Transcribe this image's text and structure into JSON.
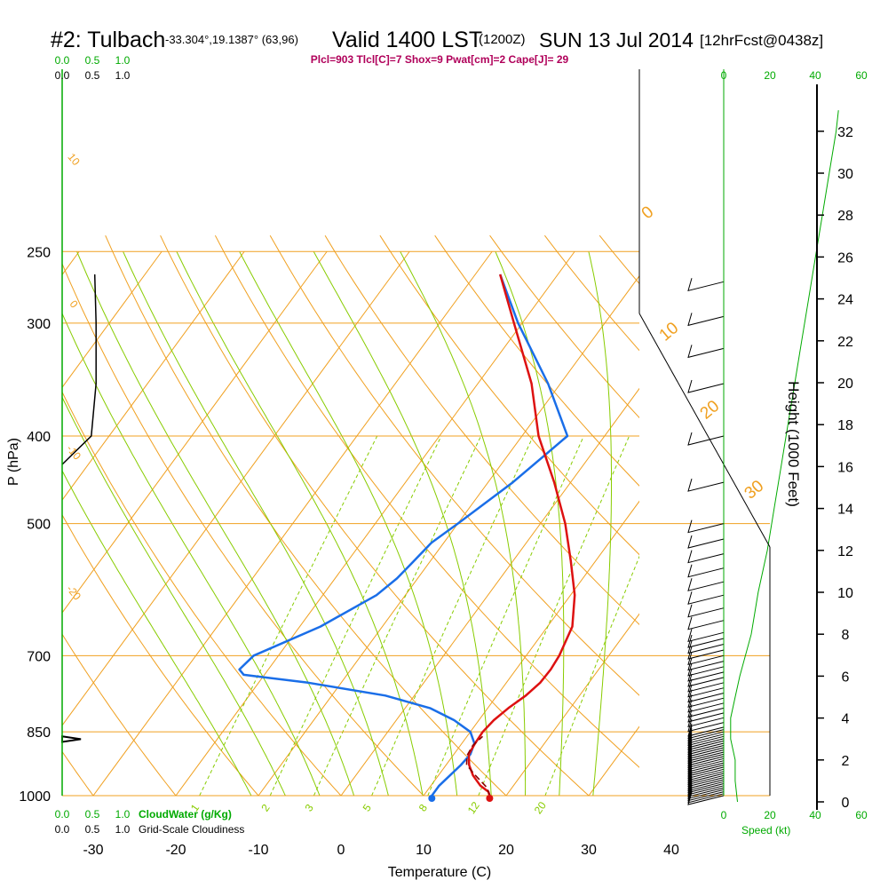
{
  "header": {
    "station": "#2: Tulbach",
    "coords": "-33.304°,19.1387° (63,96)",
    "valid": "Valid 1400 LST",
    "zulu": "(1200Z)",
    "date": "SUN 13 Jul 2014",
    "fcst": "[12hrFcst@0438z]",
    "indices": "Plcl=903 Tlcl[C]=7 Shox=9 Pwat[cm]=2 Cape[J]= 29"
  },
  "colors": {
    "temperature": "#dd1111",
    "dewpoint": "#1a6ee8",
    "parcel": "#8b0000",
    "isotherm_isobar": "#f0a020",
    "dry_adiabat": "#f0a020",
    "moist_adiabat": "#88cc00",
    "mixing_ratio": "#88cc00",
    "cloud": "#000000",
    "speed": "#00aa00"
  },
  "chart_data": {
    "type": "skew-t",
    "xlabel": "Temperature (C)",
    "ylabel": "P (hPa)",
    "y2label": "Height (1000 Feet)",
    "xlim": [
      -35,
      45
    ],
    "pressure_levels": [
      250,
      300,
      400,
      500,
      700,
      850,
      1000
    ],
    "pressure_tick_labels": [
      "250",
      "300",
      "400",
      "500",
      "700",
      "850",
      "1000"
    ],
    "temperature_ticks": [
      -30,
      -20,
      -10,
      0,
      10,
      20,
      30,
      40
    ],
    "temperature_tick_labels": [
      "-30",
      "-20",
      "-10",
      "0",
      "10",
      "20",
      "30",
      "40"
    ],
    "height_ticks_kft": [
      0,
      2,
      4,
      6,
      8,
      10,
      12,
      14,
      16,
      18,
      20,
      22,
      24,
      26,
      28,
      30,
      32
    ],
    "height_tick_labels": [
      "0",
      "2",
      "4",
      "6",
      "8",
      "10",
      "12",
      "14",
      "16",
      "18",
      "20",
      "22",
      "24",
      "26",
      "28",
      "30",
      "32"
    ],
    "isotherm_labels": [
      "0",
      "10",
      "20",
      "30"
    ],
    "dry_adiabat_labels": [
      "10",
      "0",
      "-10",
      "-20"
    ],
    "mixing_ratio_labels": [
      "1",
      "2",
      "3",
      "5",
      "8",
      "12",
      "20"
    ],
    "temperature_profile": {
      "name": "Temperature",
      "p": [
        1000,
        990,
        975,
        950,
        925,
        900,
        875,
        850,
        825,
        800,
        775,
        750,
        725,
        700,
        650,
        600,
        550,
        500,
        450,
        400,
        350,
        300,
        265
      ],
      "t": [
        18,
        17.5,
        16,
        14.2,
        12.8,
        11.8,
        11.6,
        11.5,
        11.8,
        12.5,
        13.5,
        14.1,
        14.2,
        14,
        13,
        10.5,
        7,
        3,
        -2,
        -8,
        -13.5,
        -21,
        -27
      ]
    },
    "dewpoint_profile": {
      "name": "Dewpoint",
      "p": [
        1000,
        975,
        950,
        925,
        900,
        875,
        850,
        825,
        800,
        775,
        750,
        735,
        725,
        700,
        650,
        600,
        575,
        550,
        525,
        500,
        450,
        400,
        350,
        300,
        265
      ],
      "td": [
        11,
        11,
        11.4,
        11.8,
        12,
        11.5,
        10,
        7,
        3,
        -3.5,
        -14,
        -22.5,
        -23.5,
        -23,
        -17.5,
        -13.5,
        -12.5,
        -12,
        -11.5,
        -10,
        -7,
        -4.5,
        -11.5,
        -20.5,
        -27
      ]
    },
    "parcel_path": {
      "name": "Parcel",
      "p": [
        1000,
        980,
        950,
        925,
        903,
        880,
        860
      ],
      "t": [
        18,
        17,
        14.5,
        12.5,
        11.7,
        11.5,
        11.9
      ]
    },
    "surface_points": {
      "temperature": 18,
      "dewpoint": 11
    },
    "cloud_axis": {
      "top_ticks": [
        "0.0",
        "0.5",
        "1.0"
      ],
      "top_ticks_cloudwater": [
        "0.0",
        "0.5",
        "1.0"
      ],
      "bottom_ticks_cloudwater": [
        "0.0",
        "0.5",
        "1.0"
      ],
      "bottom_ticks_cloudiness": [
        "0.0",
        "0.5",
        "1.0"
      ],
      "cloudwater_label": "CloudWater (g/Kg)",
      "cloudiness_label": "Grid-Scale Cloudiness",
      "cloudiness": {
        "p": [
          265,
          300,
          350,
          400,
          430
        ],
        "value": [
          0.47,
          0.49,
          0.49,
          0.42,
          0.0
        ]
      },
      "cloud_water_spike": {
        "p": [
          860,
          866,
          872
        ],
        "value": [
          0.0,
          0.27,
          0.0
        ]
      }
    },
    "wind_speed": {
      "label": "Speed (kt)",
      "top_ticks": [
        "0",
        "20",
        "40",
        "60"
      ],
      "bottom_ticks": [
        "0",
        "20",
        "40",
        "60"
      ],
      "xlim": [
        0,
        60
      ],
      "height_kft": [
        0,
        1,
        2,
        3,
        4,
        5,
        6,
        8,
        10,
        12,
        14,
        16,
        18,
        20,
        22,
        24,
        26,
        28,
        30,
        32,
        33
      ],
      "speed": [
        6,
        5,
        5,
        3,
        3,
        5,
        7,
        12,
        15,
        19,
        22,
        25,
        28,
        31,
        34,
        37,
        40,
        43,
        46,
        49,
        50
      ]
    }
  }
}
